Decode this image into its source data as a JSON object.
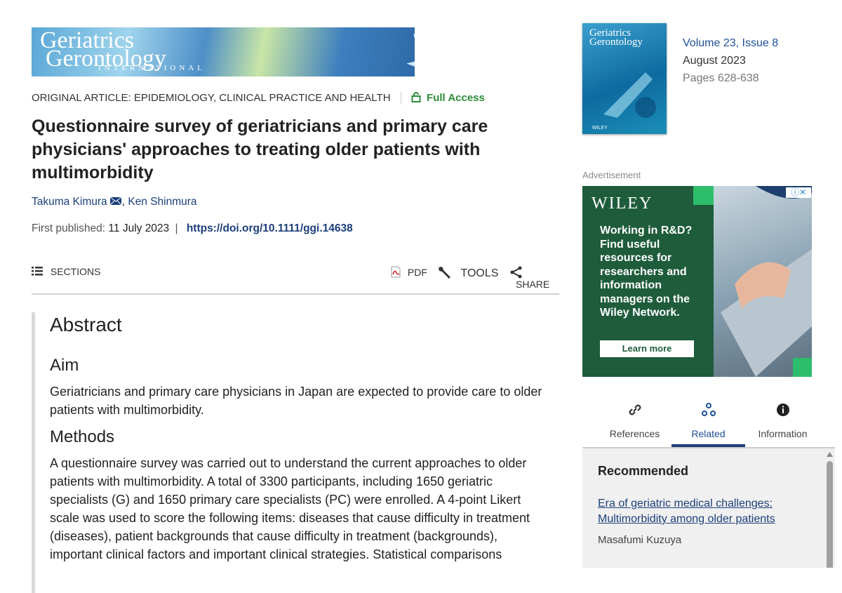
{
  "journal_banner": {
    "line1": "Geriatrics",
    "line2": "Gerontology",
    "line3": "INTERNATIONAL"
  },
  "article": {
    "category": "ORIGINAL ARTICLE: EPIDEMIOLOGY, CLINICAL PRACTICE AND HEALTH",
    "access": "Full Access",
    "title": "Questionnaire survey of geriatricians and primary care physicians' approaches to treating older patients with multimorbidity",
    "authors": [
      "Takuma Kimura",
      "Ken Shinmura"
    ],
    "author_separator": ",",
    "published_label": "First published:",
    "published_date": "11 July 2023",
    "separator": "|",
    "doi": "https://doi.org/10.1111/ggi.14638"
  },
  "toolbar": {
    "sections": "SECTIONS",
    "pdf": "PDF",
    "tools": "TOOLS",
    "share": "SHARE"
  },
  "abstract": {
    "heading": "Abstract",
    "sections": [
      {
        "heading": "Aim",
        "text": "Geriatricians and primary care physicians in Japan are expected to provide care to older patients with multimorbidity."
      },
      {
        "heading": "Methods",
        "text": "A questionnaire survey was carried out to understand the current approaches to older patients with multimorbidity. A total of 3300 participants, including 1650 geriatric specialists (G) and 1650 primary care specialists (PC) were enrolled. A 4-point Likert scale was used to score the following items: diseases that cause difficulty in treatment (diseases), patient backgrounds that cause difficulty in treatment (backgrounds), important clinical factors and important clinical strategies. Statistical comparisons"
      }
    ]
  },
  "issue": {
    "volume": "Volume 23, Issue 8",
    "date": "August 2023",
    "pages": "Pages 628-638"
  },
  "cover": {
    "line1": "Geriatrics",
    "line2": "Gerontology",
    "publisher": "WILEY"
  },
  "ad": {
    "label": "Advertisement",
    "brand": "WILEY",
    "text": "Working in R&D? Find useful resources for researchers and information managers on the Wiley Network.",
    "button": "Learn more"
  },
  "tabs": [
    "References",
    "Related",
    "Information"
  ],
  "recommended": {
    "heading": "Recommended",
    "items": [
      {
        "title": "Era of geriatric medical challenges: Multimorbidity among older patients",
        "author": "Masafumi Kuzuya"
      }
    ]
  }
}
